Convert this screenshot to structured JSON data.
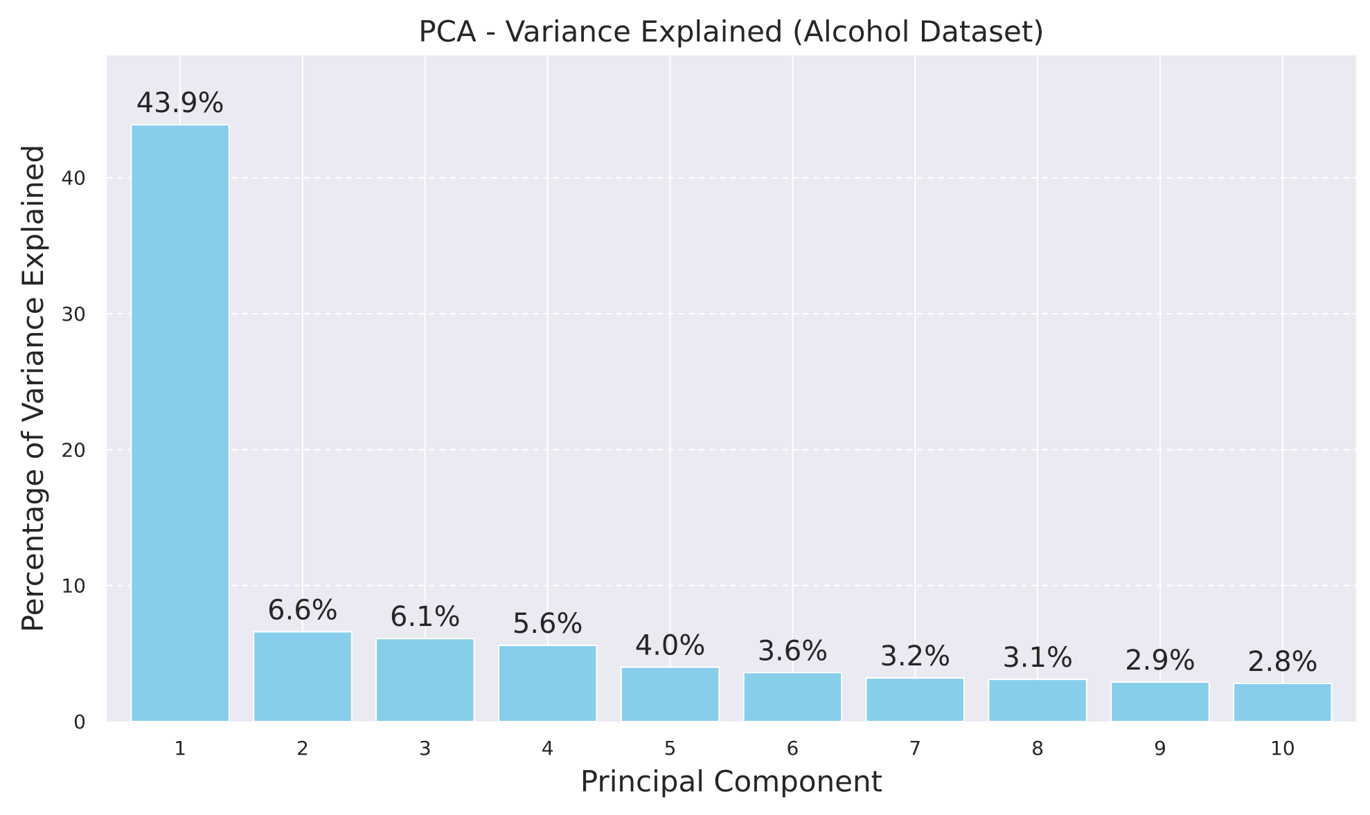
{
  "chart_data": {
    "type": "bar",
    "title": "PCA - Variance Explained (Alcohol Dataset)",
    "xlabel": "Principal Component",
    "ylabel": "Percentage of Variance Explained",
    "categories": [
      "1",
      "2",
      "3",
      "4",
      "5",
      "6",
      "7",
      "8",
      "9",
      "10"
    ],
    "values": [
      43.9,
      6.6,
      6.1,
      5.6,
      4.0,
      3.6,
      3.2,
      3.1,
      2.9,
      2.8
    ],
    "data_labels": [
      "43.9%",
      "6.6%",
      "6.1%",
      "5.6%",
      "4.0%",
      "3.6%",
      "3.2%",
      "3.1%",
      "2.9%",
      "2.8%"
    ],
    "yticks": [
      0,
      10,
      20,
      30,
      40
    ],
    "ylim": [
      0,
      49
    ],
    "grid": true,
    "bar_color": "#87CEEB",
    "plot_background": "#EAEAF2",
    "text_color": "#262626"
  }
}
